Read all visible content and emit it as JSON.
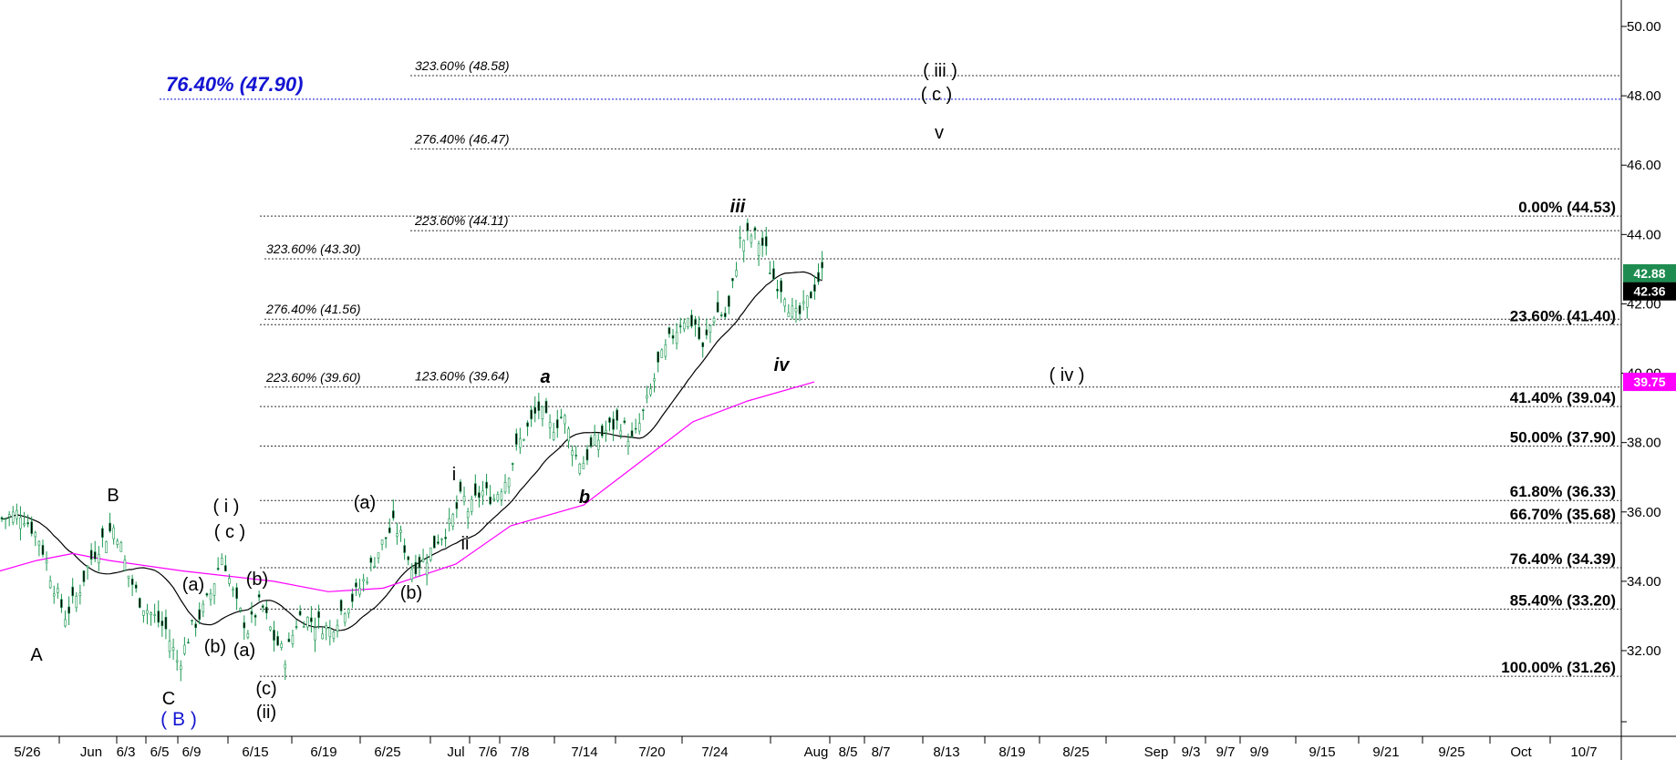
{
  "chart_data": {
    "type": "candlestick",
    "y_axis": {
      "range": [
        30.0,
        50.6
      ],
      "ticks": [
        {
          "value": 50,
          "label": "50.00"
        },
        {
          "value": 48,
          "label": "48.00"
        },
        {
          "value": 46,
          "label": "46.00"
        },
        {
          "value": 44,
          "label": "44.00"
        },
        {
          "value": 42,
          "label": "42.00"
        },
        {
          "value": 40,
          "label": "40.00"
        },
        {
          "value": 38,
          "label": "38.00"
        },
        {
          "value": 36,
          "label": "36.00"
        },
        {
          "value": 34,
          "label": "34.00"
        },
        {
          "value": 32,
          "label": "32.00"
        }
      ]
    },
    "x_axis": {
      "tick_labels": [
        "5/26",
        "Jun",
        "6/3",
        "6/5",
        "6/9",
        "6/15",
        "6/19",
        "6/25",
        "Jul",
        "7/6",
        "7/8",
        "7/14",
        "7/20",
        "7/24",
        "Aug",
        "8/5",
        "8/7",
        "8/13",
        "8/19",
        "8/25",
        "Sep",
        "9/3",
        "9/7",
        "9/9",
        "9/15",
        "9/21",
        "9/25",
        "Oct",
        "10/7"
      ]
    },
    "price_badges": [
      {
        "value": 42.88,
        "label": "42.88",
        "color": "#1e8c50"
      },
      {
        "value": 42.36,
        "label": "42.36",
        "color": "#000000"
      },
      {
        "value": 39.75,
        "label": "39.75",
        "color": "#ff00ff"
      }
    ],
    "retracement_levels": [
      {
        "value": 44.53,
        "label": "0.00% (44.53)"
      },
      {
        "value": 41.4,
        "label": "23.60% (41.40)"
      },
      {
        "value": 39.04,
        "label": "41.40% (39.04)"
      },
      {
        "value": 37.9,
        "label": "50.00% (37.90)"
      },
      {
        "value": 36.33,
        "label": "61.80% (36.33)"
      },
      {
        "value": 35.68,
        "label": "66.70% (35.68)"
      },
      {
        "value": 34.39,
        "label": "76.40% (34.39)"
      },
      {
        "value": 33.2,
        "label": "85.40% (33.20)"
      },
      {
        "value": 31.26,
        "label": "100.00% (31.26)"
      }
    ],
    "extension_levels": [
      {
        "value": 48.58,
        "label": "323.60% (48.58)"
      },
      {
        "value": 46.47,
        "label": "276.40% (46.47)"
      },
      {
        "value": 44.11,
        "label": "223.60% (44.11)"
      },
      {
        "value": 43.3,
        "label": "323.60% (43.30)"
      },
      {
        "value": 41.56,
        "label": "276.40% (41.56)"
      },
      {
        "value": 39.6,
        "label": "223.60% (39.60)"
      },
      {
        "value": 39.64,
        "label": "123.60% (39.64)"
      }
    ],
    "blue_level": {
      "value": 47.9,
      "label": "76.40% (47.90)"
    },
    "wave_labels": [
      {
        "text": "A",
        "style": "plain"
      },
      {
        "text": "B",
        "style": "plain"
      },
      {
        "text": "C",
        "style": "plain"
      },
      {
        "text": "( B )",
        "style": "blue"
      },
      {
        "text": "( i )",
        "style": "plain"
      },
      {
        "text": "( c )",
        "style": "plain"
      },
      {
        "text": "(a)",
        "style": "plain"
      },
      {
        "text": "(b)",
        "style": "plain"
      },
      {
        "text": "(b)",
        "style": "plain"
      },
      {
        "text": "(a)",
        "style": "plain"
      },
      {
        "text": "(c)",
        "style": "plain"
      },
      {
        "text": "(ii)",
        "style": "plain"
      },
      {
        "text": "(a)",
        "style": "plain"
      },
      {
        "text": "(b)",
        "style": "plain"
      },
      {
        "text": "i",
        "style": "plain"
      },
      {
        "text": "ii",
        "style": "plain"
      },
      {
        "text": "a",
        "style": "italic"
      },
      {
        "text": "b",
        "style": "italic"
      },
      {
        "text": "iii",
        "style": "italic"
      },
      {
        "text": "iv",
        "style": "italic"
      },
      {
        "text": "( iii )",
        "style": "plain"
      },
      {
        "text": "( c )",
        "style": "plain"
      },
      {
        "text": "v",
        "style": "plain"
      },
      {
        "text": "( iv )",
        "style": "plain"
      }
    ],
    "series": [
      {
        "color": "#1a9850",
        "type": "candlestick"
      },
      {
        "color": "#000000",
        "type": "moving_average"
      },
      {
        "color": "#ff00ff",
        "type": "moving_average"
      }
    ],
    "close_trace": [
      [
        0,
        35.8
      ],
      [
        6,
        36.0
      ],
      [
        12,
        35.2
      ],
      [
        16,
        34.0
      ],
      [
        20,
        33.0
      ],
      [
        24,
        33.6
      ],
      [
        28,
        34.6
      ],
      [
        32,
        35.2
      ],
      [
        36,
        35.6
      ],
      [
        40,
        34.2
      ],
      [
        44,
        33.4
      ],
      [
        48,
        33.0
      ],
      [
        52,
        32.6
      ],
      [
        56,
        31.6
      ],
      [
        60,
        32.6
      ],
      [
        64,
        33.2
      ],
      [
        66,
        33.6
      ],
      [
        70,
        34.8
      ],
      [
        74,
        33.4
      ],
      [
        78,
        32.6
      ],
      [
        82,
        33.4
      ],
      [
        86,
        32.4
      ],
      [
        90,
        31.8
      ],
      [
        94,
        33.0
      ],
      [
        100,
        32.8
      ],
      [
        104,
        32.6
      ],
      [
        108,
        33.2
      ],
      [
        112,
        33.6
      ],
      [
        116,
        34.2
      ],
      [
        120,
        35.0
      ],
      [
        124,
        35.6
      ],
      [
        126,
        35.4
      ],
      [
        130,
        34.4
      ],
      [
        134,
        34.6
      ],
      [
        138,
        35.2
      ],
      [
        142,
        35.6
      ],
      [
        146,
        36.5
      ],
      [
        148,
        36.0
      ],
      [
        152,
        36.6
      ],
      [
        156,
        36.4
      ],
      [
        160,
        37.0
      ],
      [
        164,
        38.0
      ],
      [
        168,
        38.6
      ],
      [
        170,
        39.0
      ],
      [
        174,
        38.4
      ],
      [
        178,
        38.8
      ],
      [
        182,
        37.6
      ],
      [
        184,
        37.4
      ],
      [
        188,
        38.0
      ],
      [
        192,
        38.4
      ],
      [
        196,
        38.6
      ],
      [
        200,
        38.0
      ],
      [
        204,
        39.0
      ],
      [
        208,
        40.2
      ],
      [
        212,
        41.0
      ],
      [
        216,
        41.6
      ],
      [
        220,
        41.4
      ],
      [
        222,
        40.6
      ],
      [
        226,
        41.8
      ],
      [
        230,
        41.6
      ],
      [
        234,
        43.8
      ],
      [
        238,
        44.0
      ],
      [
        242,
        43.6
      ],
      [
        244,
        42.8
      ],
      [
        248,
        42.4
      ],
      [
        250,
        41.8
      ],
      [
        252,
        41.6
      ],
      [
        254,
        41.8
      ],
      [
        258,
        42.6
      ],
      [
        260,
        42.88
      ]
    ]
  }
}
